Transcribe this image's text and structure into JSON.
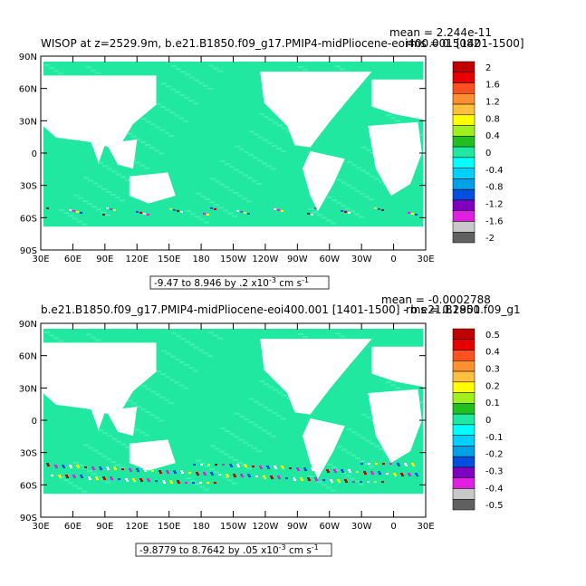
{
  "panels": [
    {
      "title": "WISOP  at z=2529.9m, b.e21.B1850.f09_g17.PMIP4-midPliocene-eoi400.001 [1401-1500]",
      "stat_mean": "mean = 2.244e-11",
      "stat_rms": "rms = 0.5082",
      "range": "-9.47 to 8.946 by .2 x10",
      "range_exp": "-3",
      "range_units": " cm s",
      "range_units_exp": "-1",
      "colorbar_labels": [
        "2",
        "1.6",
        "1.2",
        "0.8",
        "0.4",
        "0",
        "-0.4",
        "-0.8",
        "-1.2",
        "-1.6",
        "-2"
      ]
    },
    {
      "title": "b.e21.B1850.f09_g17.PMIP4-midPliocene-eoi400.001 [1401-1500] - b.e21.B1850.f09_g1",
      "stat_mean": "mean = -0.0002788",
      "stat_rms": "rms = 0.2901",
      "range": "-9.8779 to 8.7642 by .05 x10",
      "range_exp": "-3",
      "range_units": " cm s",
      "range_units_exp": "-1",
      "colorbar_labels": [
        "0.5",
        "0.4",
        "0.3",
        "0.2",
        "0.1",
        "0",
        "-0.1",
        "-0.2",
        "-0.3",
        "-0.4",
        "-0.5"
      ]
    }
  ],
  "axes": {
    "y_labels": [
      "90N",
      "60N",
      "30N",
      "0",
      "30S",
      "60S",
      "90S"
    ],
    "x_labels": [
      "30E",
      "60E",
      "90E",
      "120E",
      "150E",
      "180",
      "150W",
      "120W",
      "90W",
      "60W",
      "30W",
      "0",
      "30E"
    ]
  },
  "colors": {
    "ocean_main": "#20e8a0",
    "ocean_light": "#40f0b0",
    "colorbar": [
      "#c00000",
      "#e80000",
      "#ff5020",
      "#ff9030",
      "#ffc040",
      "#ffff00",
      "#a0f020",
      "#20c020",
      "#20e8a0",
      "#00ffff",
      "#00d0ff",
      "#00a0e8",
      "#0050e0",
      "#8000c0",
      "#e020e0",
      "#c8c8c8",
      "#606060"
    ]
  }
}
